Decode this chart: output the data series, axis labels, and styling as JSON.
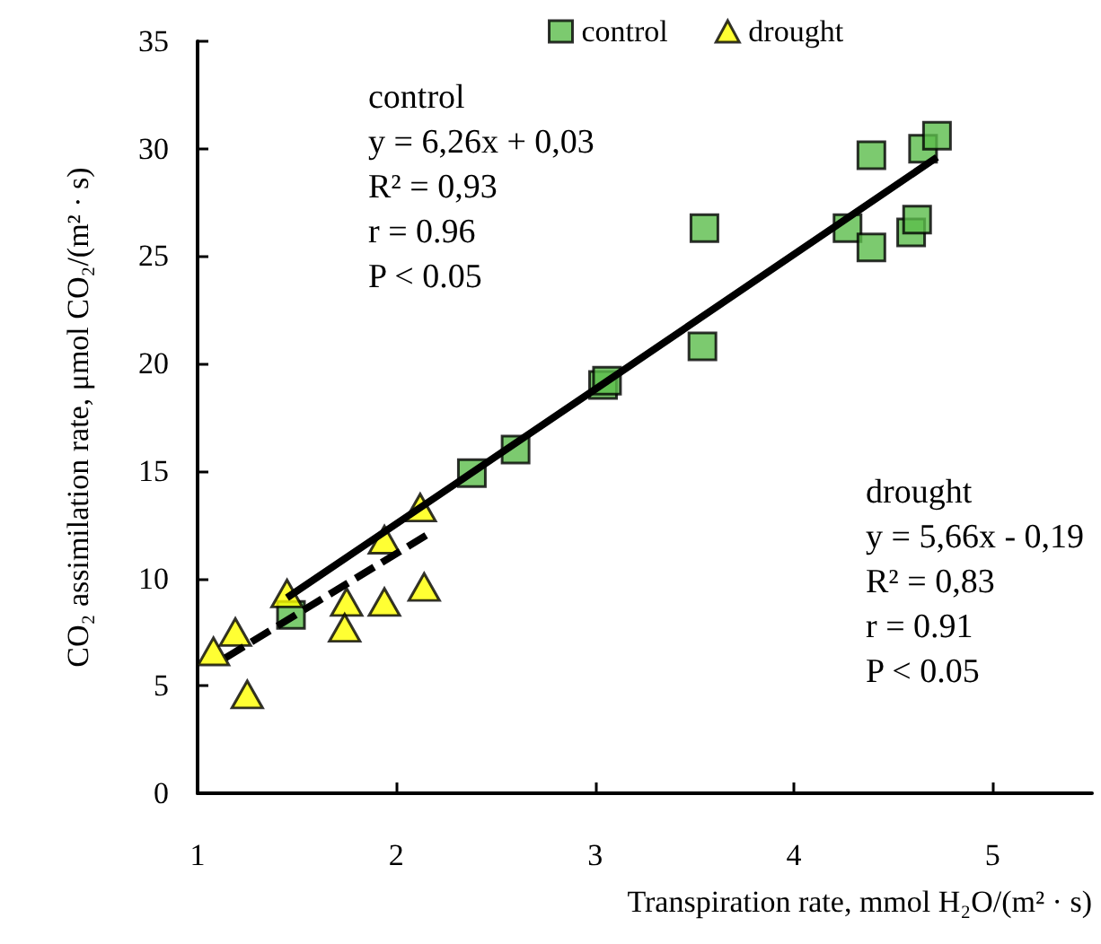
{
  "chart_data": {
    "type": "scatter",
    "xlabel": "Transpiration rate, mmol H₂O/(m² · s)",
    "ylabel": "CO₂ assimilation rate, μmol CO₂/(m² · s)",
    "xlim": [
      1,
      5.5
    ],
    "xticks": [
      1,
      2,
      3,
      4,
      5
    ],
    "ylim": [
      0,
      35
    ],
    "yticks": [
      0,
      5,
      10,
      15,
      20,
      25,
      30,
      35
    ],
    "grid": false,
    "legend": "top right",
    "annotations": [
      "control\ny = 6,26x + 0,03\nR² = 0,93\nr = 0.96\nP < 0.05",
      "drought\ny = 5,66x - 0,19\nR² = 0,83\nr = 0.91\nP < 0.05"
    ],
    "series": [
      {
        "name": "control",
        "color": "#5bbd4b",
        "marker": "square",
        "x": [
          1.47,
          2.38,
          2.6,
          3.04,
          3.06,
          3.54,
          3.55,
          4.27,
          4.39,
          4.39,
          4.59,
          4.62,
          4.65,
          4.72
        ],
        "values": [
          8.3,
          14.9,
          16.0,
          19.0,
          19.2,
          20.8,
          26.3,
          26.3,
          29.7,
          25.4,
          26.1,
          26.7,
          30.0,
          30.6
        ]
      },
      {
        "name": "drought",
        "color": "#ffff00",
        "marker": "triangle",
        "x": [
          1.08,
          1.19,
          1.25,
          1.45,
          1.75,
          1.74,
          1.94,
          1.94,
          2.14,
          2.12
        ],
        "values": [
          6.6,
          7.5,
          4.6,
          9.3,
          8.9,
          7.7,
          8.9,
          11.8,
          9.6,
          13.3
        ]
      },
      {
        "type": "line",
        "color": "#000000",
        "marker": "none",
        "line_style": "solid",
        "x": [
          1.45,
          3.0,
          4.72
        ],
        "values": [
          9.1,
          18.8,
          29.6
        ]
      },
      {
        "type": "line",
        "color": "#000000",
        "marker": "none",
        "line_style": "dashed",
        "x": [
          1.14,
          1.6,
          2.15
        ],
        "values": [
          6.3,
          8.9,
          12.0
        ]
      }
    ]
  }
}
